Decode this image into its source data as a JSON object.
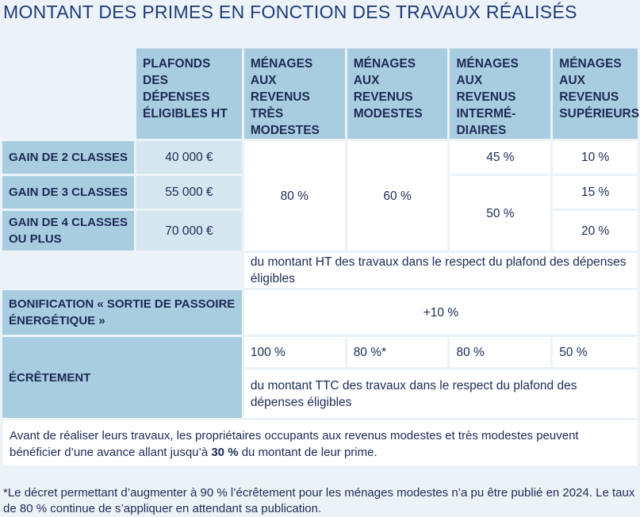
{
  "title": "MONTANT DES PRIMES EN FONCTION DES TRAVAUX RÉALISÉS",
  "table": {
    "headers": [
      "PLAFONDS DES DÉPENSES ÉLIGIBLES HT",
      "MÉNAGES AUX REVENUS TRÈS MODESTES",
      "MÉNAGES AUX REVENUS MODESTES",
      "MÉNAGES AUX REVENUS INTERMÉ- DIAIRES",
      "MÉNAGES AUX REVENUS SUPÉRIEURS"
    ],
    "rows": [
      {
        "label": "GAIN DE 2 CLASSES",
        "ceiling": "40 000 €"
      },
      {
        "label": "GAIN DE 3 CLASSES",
        "ceiling": "55 000 €"
      },
      {
        "label": "GAIN DE 4 CLASSES OU PLUS",
        "ceiling": "70 000 €"
      }
    ],
    "rates": {
      "tres_modestes": "80 %",
      "modestes": "60 %",
      "intermediaires_2": "45 %",
      "intermediaires_3_4": "50 %",
      "superieurs_2": "10 %",
      "superieurs_3": "15 %",
      "superieurs_4": "20 %"
    },
    "rates_note": "du montant HT des travaux dans le respect du plafond des dépenses éligibles",
    "bonus": {
      "label": "BONIFICATION « SORTIE DE PASSOIRE ÉNERGÉTIQUE »",
      "value": "+10 %"
    },
    "ecretement": {
      "label": "ÉCRÊTEMENT",
      "values": [
        "100 %",
        "80 %*",
        "80 %",
        "50 %"
      ],
      "note": "du montant TTC des travaux dans le respect du plafond des dépenses éligibles"
    }
  },
  "advance_note": {
    "text_before": "Avant de réaliser leurs travaux, les propriétaires occupants aux revenus modestes et très modestes peuvent bénéficier d’une avance allant jusqu’à ",
    "highlight": "30 %",
    "text_after": " du montant de leur prime."
  },
  "footnote": "*Le décret permettant d’augmenter à 90 % l’écrêtement pour les ménages modestes n’a pu être publié en 2024. Le taux de 80 % continue de s’appliquer en attendant sa publication."
}
